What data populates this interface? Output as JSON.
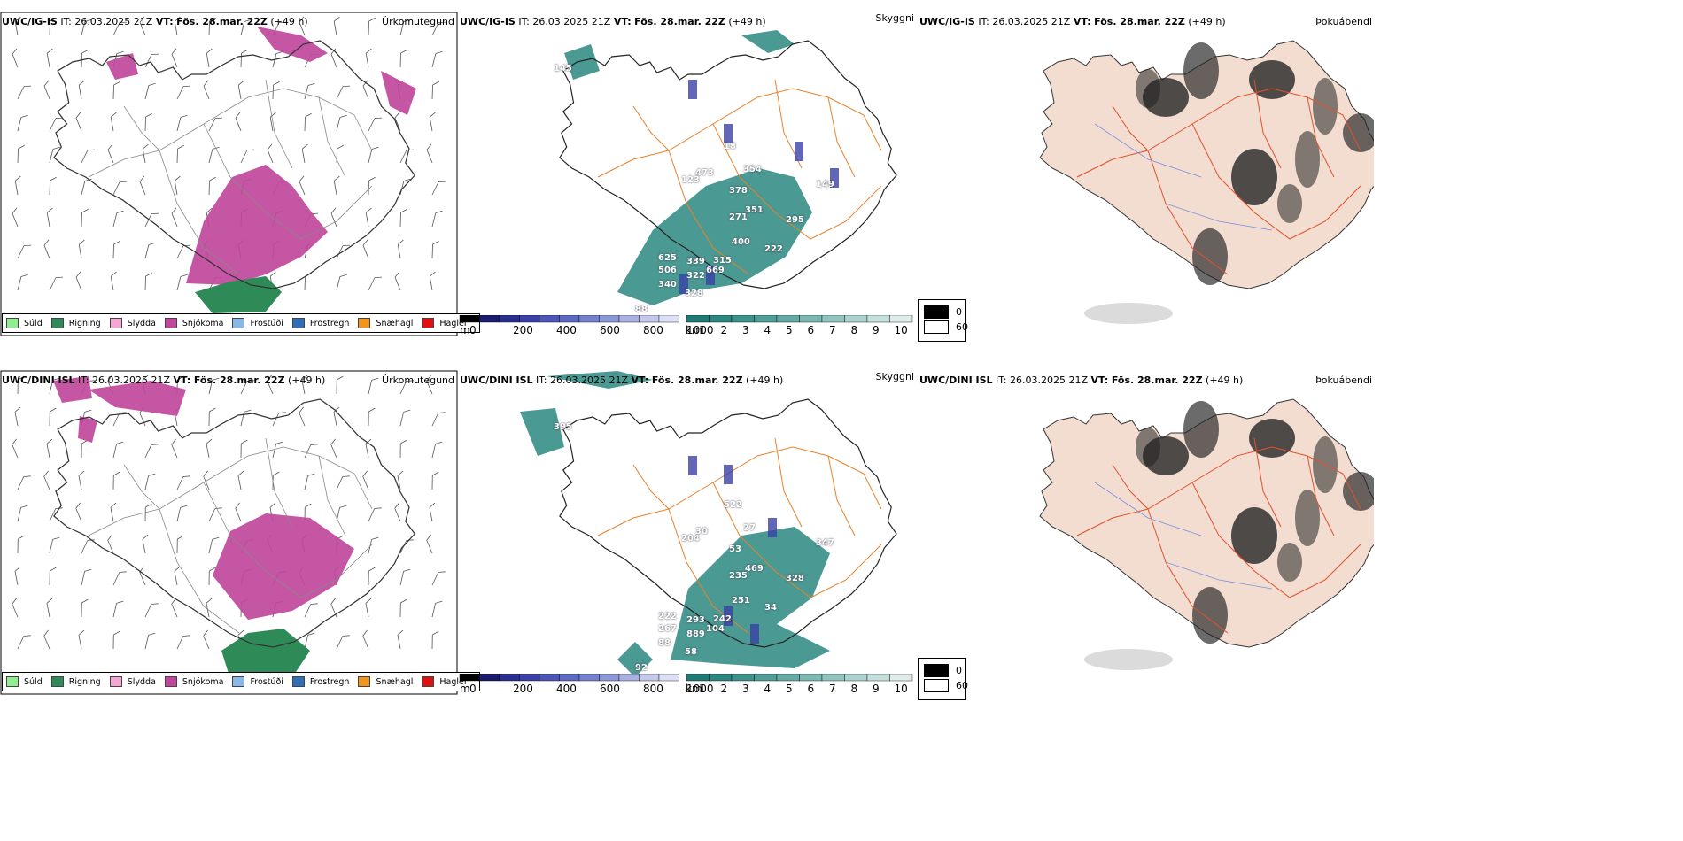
{
  "rows": [
    {
      "precip": {
        "model": "UWC/IG-IS",
        "it": "IT: 26.03.2025 21Z",
        "vt_label": "VT:",
        "vt": "Fös. 28.mar. 22Z",
        "lead": "(+49 h)",
        "title": "Úrkomutegund"
      },
      "cloud": {
        "model": "UWC/IG-IS",
        "it": "IT: 26.03.2025 21Z",
        "vt_label": "VT:",
        "vt": "Fös. 28.mar. 22Z",
        "lead": "(+49 h)",
        "title": "Skyggni"
      },
      "fog": {
        "model": "UWC/IG-IS",
        "it": "IT: 26.03.2025 21Z",
        "vt_label": "VT:",
        "vt": "Fös. 28.mar. 22Z",
        "lead": "(+49 h)",
        "title": "Þokuábendi"
      },
      "labels": [
        "145",
        "123",
        "473",
        "354",
        "378",
        "351",
        "271",
        "18",
        "149",
        "295",
        "400",
        "625",
        "339",
        "315",
        "506",
        "322",
        "669",
        "340",
        "328",
        "88",
        "222"
      ]
    },
    {
      "precip": {
        "model": "UWC/DINI ISL",
        "it": "IT: 26.03.2025 21Z",
        "vt_label": "VT:",
        "vt": "Fös. 28.mar. 22Z",
        "lead": "(+49 h)",
        "title": "Úrkomutegund"
      },
      "cloud": {
        "model": "UWC/DINI ISL",
        "it": "IT: 26.03.2025 21Z",
        "vt_label": "VT:",
        "vt": "Fös. 28.mar. 22Z",
        "lead": "(+49 h)",
        "title": "Skyggni"
      },
      "fog": {
        "model": "UWC/DINI ISL",
        "it": "IT: 26.03.2025 21Z",
        "vt_label": "VT:",
        "vt": "Fös. 28.mar. 22Z",
        "lead": "(+49 h)",
        "title": "Þokuábendi"
      },
      "labels": [
        "395",
        "204",
        "30",
        "27",
        "53",
        "469",
        "235",
        "522",
        "347",
        "328",
        "251",
        "222",
        "293",
        "242",
        "267",
        "889",
        "104",
        "88",
        "58",
        "92",
        "34"
      ]
    }
  ],
  "precip_legend": [
    {
      "label": "Súld",
      "color": "#90ee90"
    },
    {
      "label": "Rigning",
      "color": "#2e8b57"
    },
    {
      "label": "Slydda",
      "color": "#f4a7d4"
    },
    {
      "label": "Snjókoma",
      "color": "#c0489c"
    },
    {
      "label": "Frostúði",
      "color": "#87b8ea"
    },
    {
      "label": "Frostregn",
      "color": "#2f6fb8"
    },
    {
      "label": "Snæhagl",
      "color": "#f0961e"
    },
    {
      "label": "Haglél",
      "color": "#e01010"
    }
  ],
  "cloud_colorbar": {
    "m_unit": "m",
    "m_ticks": [
      "0",
      "200",
      "400",
      "600",
      "800",
      "1000"
    ],
    "km_unit": "km",
    "km_ticks": [
      "1",
      "2",
      "3",
      "4",
      "5",
      "6",
      "7",
      "8",
      "9",
      "10"
    ],
    "m_colors": [
      "#000000",
      "#1a1a6e",
      "#2a2f8f",
      "#3b40a8",
      "#4c55b8",
      "#5d6ac4",
      "#7481cf",
      "#8d98d8",
      "#a9b0e2",
      "#c4c9ec",
      "#dde0f4"
    ],
    "km_colors": [
      "#1e7a72",
      "#2c8780",
      "#3c938c",
      "#4f9f98",
      "#64aba5",
      "#7bb8b2",
      "#93c5c0",
      "#abd2ce",
      "#c4dfdc",
      "#deecea"
    ]
  },
  "fog_legend": [
    {
      "label": "0",
      "color": "#000000"
    },
    {
      "label": "60",
      "color": "#ffffff"
    }
  ]
}
